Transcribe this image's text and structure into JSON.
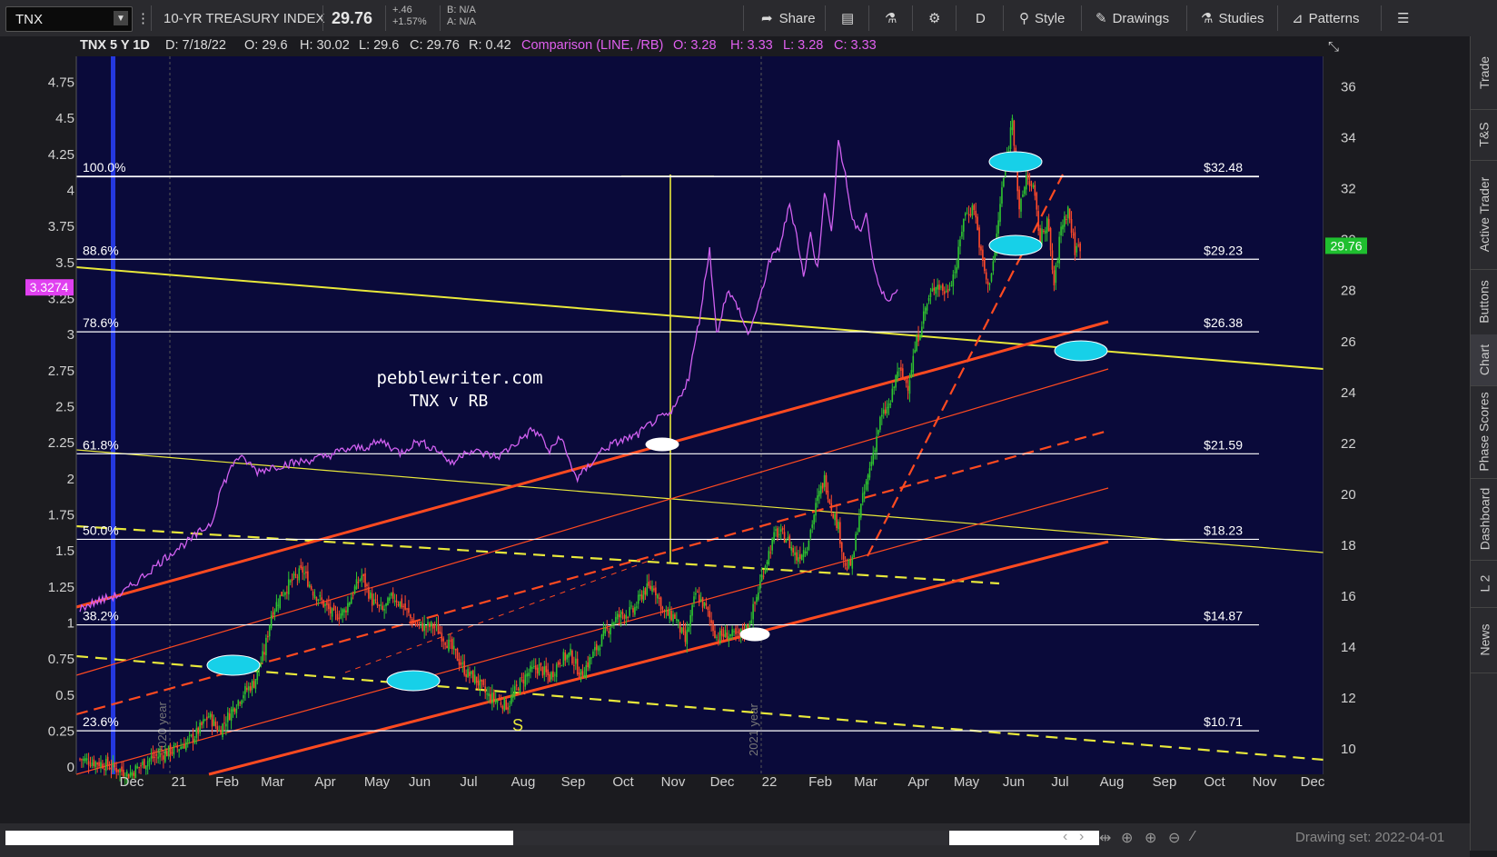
{
  "toolbar": {
    "symbol": "TNX",
    "description": "10-YR TREASURY INDEX",
    "last": "29.76",
    "change": "+.46",
    "change_pct": "+1.57%",
    "bid": "B: N/A",
    "ask": "A: N/A",
    "share": "Share",
    "period": "D",
    "style": "Style",
    "drawings": "Drawings",
    "studies": "Studies",
    "patterns": "Patterns"
  },
  "header": {
    "title": "TNX 5 Y 1D",
    "date": "D: 7/18/22",
    "open": "O: 29.6",
    "high": "H: 30.02",
    "low": "L: 29.6",
    "close": "C: 29.76",
    "range": "R: 0.42",
    "comparison": "Comparison (LINE, /RB)",
    "cmp_open": "O: 3.28",
    "cmp_high": "H: 3.33",
    "cmp_low": "L: 3.28",
    "cmp_close": "C: 3.33"
  },
  "colors": {
    "background": "#0a0a3a",
    "candle_up": "#2fc42f",
    "candle_down": "#ff4a2a",
    "comparison": "#d060f0",
    "fib": "#ffffff",
    "trend_yellow": "#e8e83a",
    "channel_red": "#ff4a20",
    "marker_cyan": "#17d0e8",
    "last_price": "#1fbf2f",
    "cmp_price": "#e040f0"
  },
  "chart_data": {
    "type": "candlestick",
    "title": "pebblewriter.com",
    "subtitle": "TNX v RB",
    "x_labels": [
      "Dec",
      "21",
      "Feb",
      "Mar",
      "Apr",
      "May",
      "Jun",
      "Jul",
      "Aug",
      "Sep",
      "Oct",
      "Nov",
      "Dec",
      "22",
      "Feb",
      "Mar",
      "Apr",
      "May",
      "Jun",
      "Jul",
      "Aug",
      "Sep",
      "Oct",
      "Nov",
      "Dec"
    ],
    "year_labels": [
      "2020 year",
      "2021 year"
    ],
    "right_axis_ticks": [
      10,
      12,
      14,
      16,
      18,
      20,
      22,
      24,
      26,
      28,
      30,
      32,
      34,
      36
    ],
    "left_axis_ticks": [
      "0",
      "0.25",
      "0.5",
      "0.75",
      "1",
      "1.25",
      "1.5",
      "1.75",
      "2",
      "2.25",
      "2.5",
      "2.75",
      "3",
      "3.25",
      "3.5",
      "3.75",
      "4",
      "4.25",
      "4.5",
      "4.75"
    ],
    "right_ylim": [
      9,
      37.2
    ],
    "left_ylim": [
      -0.05,
      4.93
    ],
    "fib_levels": [
      {
        "pct": "100.0%",
        "value": "$32.48",
        "price": 32.48
      },
      {
        "pct": "88.6%",
        "value": "$29.23",
        "price": 29.23
      },
      {
        "pct": "78.6%",
        "value": "$26.38",
        "price": 26.38
      },
      {
        "pct": "61.8%",
        "value": "$21.59",
        "price": 21.59
      },
      {
        "pct": "50.0%",
        "value": "$18.23",
        "price": 18.23
      },
      {
        "pct": "38.2%",
        "value": "$14.87",
        "price": 14.87
      },
      {
        "pct": "23.6%",
        "value": "$10.71",
        "price": 10.71
      }
    ],
    "tnx_path": [
      [
        0,
        9.6
      ],
      [
        14,
        9.4
      ],
      [
        22,
        9.2
      ],
      [
        28,
        9.0
      ],
      [
        34,
        9.3
      ],
      [
        40,
        9.6
      ],
      [
        48,
        9.8
      ],
      [
        58,
        10.1
      ],
      [
        66,
        10.5
      ],
      [
        74,
        11.3
      ],
      [
        80,
        10.7
      ],
      [
        88,
        11.6
      ],
      [
        94,
        12.2
      ],
      [
        100,
        12.6
      ],
      [
        106,
        13.8
      ],
      [
        110,
        15.3
      ],
      [
        116,
        16.1
      ],
      [
        122,
        16.6
      ],
      [
        128,
        17.0
      ],
      [
        134,
        16.2
      ],
      [
        140,
        15.7
      ],
      [
        146,
        15.2
      ],
      [
        152,
        15.4
      ],
      [
        158,
        16.3
      ],
      [
        162,
        16.8
      ],
      [
        168,
        15.8
      ],
      [
        174,
        15.4
      ],
      [
        180,
        16.0
      ],
      [
        186,
        15.6
      ],
      [
        192,
        14.9
      ],
      [
        198,
        14.8
      ],
      [
        204,
        14.8
      ],
      [
        210,
        14.3
      ],
      [
        216,
        13.7
      ],
      [
        222,
        13.0
      ],
      [
        228,
        12.7
      ],
      [
        234,
        12.1
      ],
      [
        240,
        11.9
      ],
      [
        246,
        11.7
      ],
      [
        252,
        12.5
      ],
      [
        258,
        13.0
      ],
      [
        264,
        13.2
      ],
      [
        270,
        12.8
      ],
      [
        276,
        13.5
      ],
      [
        282,
        13.7
      ],
      [
        288,
        12.9
      ],
      [
        294,
        13.6
      ],
      [
        300,
        14.3
      ],
      [
        306,
        15.0
      ],
      [
        312,
        15.3
      ],
      [
        318,
        15.4
      ],
      [
        324,
        16.2
      ],
      [
        330,
        16.4
      ],
      [
        336,
        15.3
      ],
      [
        342,
        15.2
      ],
      [
        348,
        14.2
      ],
      [
        354,
        16.1
      ],
      [
        360,
        15.5
      ],
      [
        366,
        14.4
      ],
      [
        372,
        14.5
      ],
      [
        378,
        14.4
      ],
      [
        384,
        14.8
      ],
      [
        388,
        15.7
      ],
      [
        394,
        17.3
      ],
      [
        400,
        18.5
      ],
      [
        406,
        18.3
      ],
      [
        412,
        17.5
      ],
      [
        418,
        18.0
      ],
      [
        424,
        19.8
      ],
      [
        428,
        20.6
      ],
      [
        432,
        19.5
      ],
      [
        436,
        18.7
      ],
      [
        440,
        17.1
      ],
      [
        444,
        17.3
      ],
      [
        448,
        19.2
      ],
      [
        454,
        21.0
      ],
      [
        460,
        22.9
      ],
      [
        466,
        23.6
      ],
      [
        470,
        24.9
      ],
      [
        476,
        24.3
      ],
      [
        480,
        25.7
      ],
      [
        486,
        27.3
      ],
      [
        492,
        28.3
      ],
      [
        498,
        27.9
      ],
      [
        504,
        29.0
      ],
      [
        508,
        30.9
      ],
      [
        514,
        31.3
      ],
      [
        518,
        29.4
      ],
      [
        522,
        28.1
      ],
      [
        526,
        29.5
      ],
      [
        530,
        32.0
      ],
      [
        534,
        33.7
      ],
      [
        536,
        34.9
      ],
      [
        540,
        31.0
      ],
      [
        544,
        32.5
      ],
      [
        548,
        32.0
      ],
      [
        552,
        30.0
      ],
      [
        556,
        30.8
      ],
      [
        560,
        28.2
      ],
      [
        564,
        30.5
      ],
      [
        568,
        31.2
      ],
      [
        572,
        29.6
      ],
      [
        575,
        29.76
      ]
    ],
    "rb_path": [
      [
        0,
        1.1
      ],
      [
        10,
        1.15
      ],
      [
        24,
        1.2
      ],
      [
        34,
        1.3
      ],
      [
        44,
        1.4
      ],
      [
        54,
        1.5
      ],
      [
        64,
        1.58
      ],
      [
        70,
        1.64
      ],
      [
        76,
        1.7
      ],
      [
        80,
        1.9
      ],
      [
        86,
        2.05
      ],
      [
        90,
        2.15
      ],
      [
        96,
        2.12
      ],
      [
        102,
        2.05
      ],
      [
        110,
        2.08
      ],
      [
        118,
        2.1
      ],
      [
        128,
        2.12
      ],
      [
        140,
        2.15
      ],
      [
        152,
        2.2
      ],
      [
        164,
        2.22
      ],
      [
        174,
        2.26
      ],
      [
        184,
        2.18
      ],
      [
        194,
        2.26
      ],
      [
        206,
        2.2
      ],
      [
        214,
        2.1
      ],
      [
        222,
        2.2
      ],
      [
        230,
        2.18
      ],
      [
        240,
        2.15
      ],
      [
        250,
        2.24
      ],
      [
        260,
        2.34
      ],
      [
        266,
        2.28
      ],
      [
        270,
        2.18
      ],
      [
        276,
        2.3
      ],
      [
        282,
        2.1
      ],
      [
        286,
        2.0
      ],
      [
        292,
        2.08
      ],
      [
        300,
        2.2
      ],
      [
        310,
        2.26
      ],
      [
        320,
        2.3
      ],
      [
        330,
        2.4
      ],
      [
        340,
        2.45
      ],
      [
        350,
        2.7
      ],
      [
        356,
        3.1
      ],
      [
        362,
        3.6
      ],
      [
        366,
        3.0
      ],
      [
        372,
        3.3
      ],
      [
        378,
        3.2
      ],
      [
        384,
        3.0
      ],
      [
        390,
        3.2
      ],
      [
        396,
        3.5
      ],
      [
        402,
        3.6
      ],
      [
        408,
        3.9
      ],
      [
        412,
        3.7
      ],
      [
        416,
        3.4
      ],
      [
        420,
        3.7
      ],
      [
        424,
        3.45
      ],
      [
        428,
        4.0
      ],
      [
        432,
        3.7
      ],
      [
        436,
        4.35
      ],
      [
        440,
        4.1
      ],
      [
        444,
        3.8
      ],
      [
        448,
        3.7
      ],
      [
        452,
        3.85
      ],
      [
        456,
        3.5
      ],
      [
        460,
        3.3
      ],
      [
        464,
        3.25
      ],
      [
        470,
        3.3
      ]
    ],
    "trendlines": "drawn from fixed anchor points in script"
  },
  "nav": [
    "Trade",
    "T&S",
    "Active Trader",
    "Buttons",
    "Chart",
    "Phase Scores",
    "Dashboard",
    "L 2",
    "News"
  ],
  "bottom": {
    "drawing_set": "Drawing set: 2022-04-01"
  }
}
